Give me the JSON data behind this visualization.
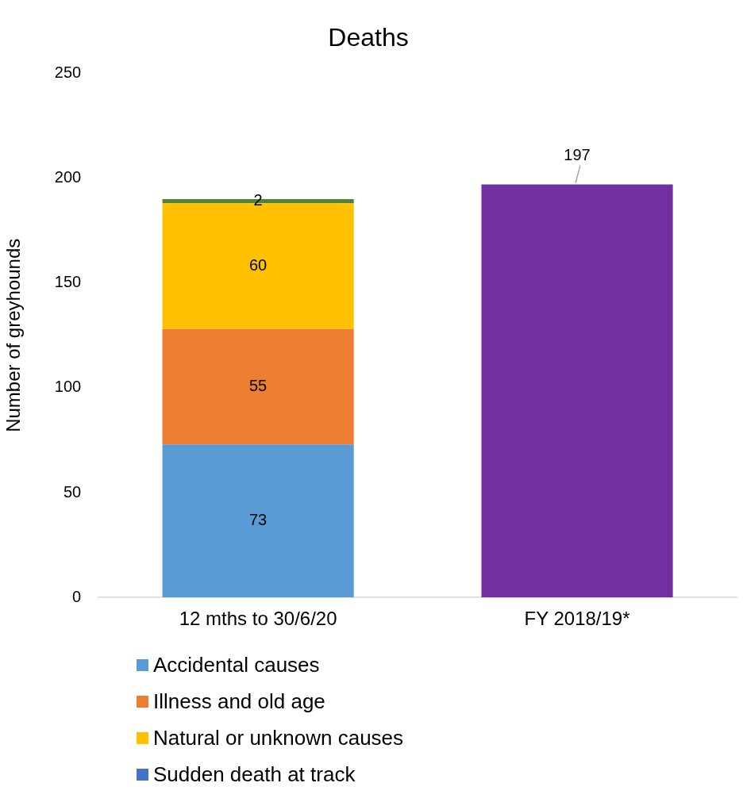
{
  "chart_data": {
    "type": "bar",
    "title": "Deaths",
    "ylabel": "Number of greyhounds",
    "categories": [
      "12 mths to 30/6/20",
      "FY 2018/19*"
    ],
    "stacked": true,
    "series": [
      {
        "name": "Accidental causes",
        "color": "#5b9bd5",
        "values": [
          73,
          null
        ]
      },
      {
        "name": "Illness and old age",
        "color": "#ed7d31",
        "values": [
          55,
          null
        ]
      },
      {
        "name": "Natural or unknown causes",
        "color": "#ffc000",
        "values": [
          60,
          null
        ]
      },
      {
        "name": "Sudden death at track",
        "color": "#4472c4",
        "values": [
          null,
          null
        ]
      },
      {
        "color": "#548235",
        "values": [
          2,
          null
        ]
      },
      {
        "color": "#7030a0",
        "values": [
          null,
          197
        ]
      }
    ],
    "ylim": [
      0,
      250
    ],
    "yticks": [
      0,
      50,
      100,
      150,
      200,
      250
    ],
    "grid": false,
    "legend": "bottom",
    "data_labels": true
  }
}
